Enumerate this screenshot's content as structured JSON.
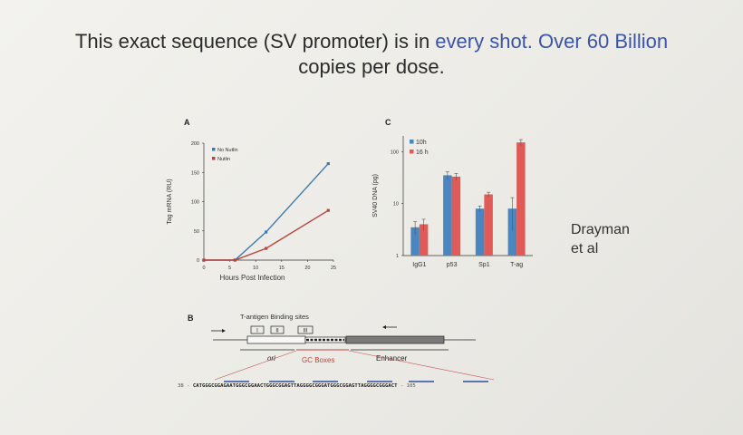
{
  "slide": {
    "title_part1": "This exact sequence (SV promoter) is in ",
    "title_accent": "every shot. Over 60 Billion",
    "title_line2": "copies per dose.",
    "attribution_line1": "Drayman",
    "attribution_line2": "et al"
  },
  "panels": {
    "a": "A",
    "b": "B",
    "c": "C"
  },
  "chart_data": [
    {
      "type": "line",
      "panel": "A",
      "xlabel": "Hours Post Infection",
      "ylabel": "Tag mRNA  (RU)",
      "xlim": [
        0,
        25
      ],
      "ylim": [
        0,
        200
      ],
      "x_ticks": [
        0,
        5,
        10,
        15,
        20,
        25
      ],
      "y_ticks": [
        0,
        50,
        100,
        150,
        200
      ],
      "legend_position": "top-left",
      "series": [
        {
          "name": "No Nutlin",
          "color": "#3b7bb0",
          "x": [
            0,
            6,
            12,
            24
          ],
          "y": [
            0,
            0,
            48,
            165
          ]
        },
        {
          "name": "Nutlin",
          "color": "#b8453b",
          "x": [
            0,
            6,
            12,
            24
          ],
          "y": [
            0,
            0,
            20,
            85
          ]
        }
      ]
    },
    {
      "type": "bar",
      "panel": "C",
      "ylabel": "SV40 DNA (pg)",
      "yscale": "log",
      "ylim": [
        1,
        200
      ],
      "y_ticks": [
        1,
        10,
        100
      ],
      "categories": [
        "IgG1",
        "p53",
        "Sp1",
        "T-ag"
      ],
      "legend_position": "top-left",
      "series": [
        {
          "name": "10h",
          "color": "#4a86c0",
          "values": [
            3.5,
            35,
            8,
            8
          ],
          "errors": [
            1,
            6,
            1,
            5
          ]
        },
        {
          "name": "16 h",
          "color": "#e05a58",
          "values": [
            4,
            33,
            15,
            150
          ],
          "errors": [
            1,
            5,
            1.5,
            20
          ]
        }
      ]
    }
  ],
  "diagram": {
    "header": "T-antigen Binding sites",
    "sites": [
      "I",
      "II",
      "III"
    ],
    "labels": {
      "ori": "ori",
      "gc": "GC Boxes",
      "enhancer": "Enhancer"
    }
  },
  "sequence": {
    "start": "38",
    "text": "CATGGGCGGAGAATGGGCGGAACTGGGCGGAGTTAGGGGCGGGATGGGCGGAGTTAGGGGCGGGACT",
    "end": "105"
  }
}
